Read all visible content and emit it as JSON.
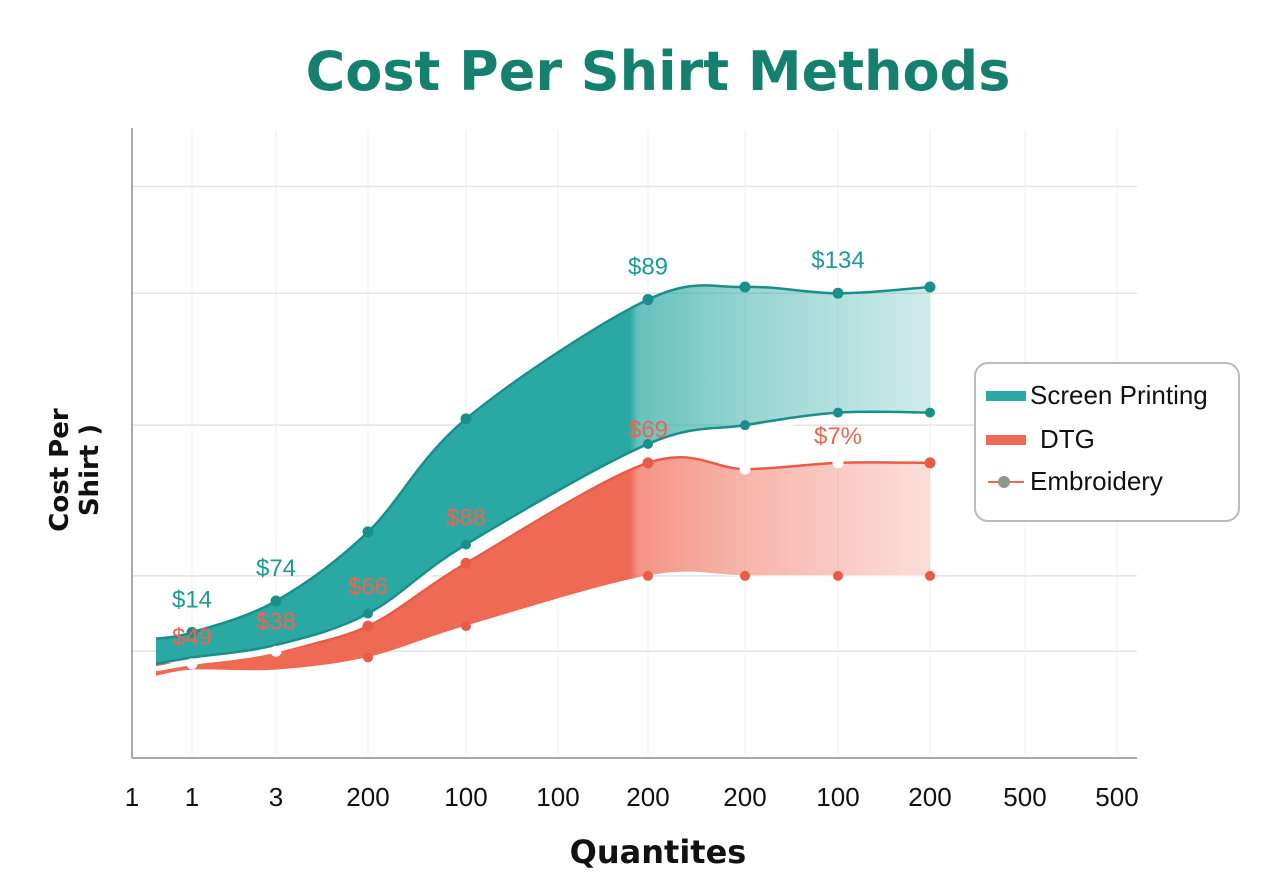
{
  "chart_data": {
    "type": "area",
    "title": "Cost Per Shirt Methods",
    "xlabel": "Quantites",
    "ylabel": "Cost Per Shirt )",
    "categories": [
      "1",
      "1",
      "3",
      "200",
      "100",
      "100",
      "200",
      "200",
      "100",
      "200",
      "500",
      "500"
    ],
    "ylim": [
      0,
      100
    ],
    "grid": true,
    "legend_position": "right",
    "series": [
      {
        "name": "Screen Printing",
        "color": "#2aa9a4",
        "x": [
          0.4,
          1,
          2,
          3,
          4,
          6,
          7,
          8,
          9
        ],
        "upper": [
          19,
          20,
          25,
          36,
          54,
          73,
          75,
          74,
          75
        ],
        "lower": [
          15,
          16,
          18,
          23,
          34,
          50,
          53,
          55,
          55
        ]
      },
      {
        "name": "DTG",
        "color": "#ef6a55",
        "x": [
          0.4,
          1,
          2,
          3,
          4,
          6,
          7,
          8,
          9
        ],
        "upper": [
          15,
          15,
          17,
          21,
          31,
          47,
          46,
          47,
          47
        ],
        "lower": [
          13,
          14,
          14,
          16,
          21,
          29,
          29,
          29,
          29
        ]
      },
      {
        "name": "Embroidery",
        "color": "#8a9a8a",
        "marker": "line-dot"
      }
    ],
    "annotations": [
      {
        "text": "$14",
        "series": 0,
        "x": 1,
        "y": 24
      },
      {
        "text": "$49",
        "series": 1,
        "x": 1,
        "y": 18
      },
      {
        "text": "$74",
        "series": 0,
        "x": 2,
        "y": 29
      },
      {
        "text": "$38",
        "series": 1,
        "x": 2,
        "y": 20.5
      },
      {
        "text": "$66",
        "series": 1,
        "x": 3,
        "y": 26
      },
      {
        "text": "$88",
        "series": 1,
        "x": 4,
        "y": 37
      },
      {
        "text": "$89",
        "series": 0,
        "x": 6,
        "y": 77
      },
      {
        "text": "$69",
        "series": 1,
        "x": 6,
        "y": 51
      },
      {
        "text": "$134",
        "series": 0,
        "x": 8,
        "y": 78
      },
      {
        "text": "$7%",
        "series": 1,
        "x": 8,
        "y": 50
      }
    ]
  }
}
